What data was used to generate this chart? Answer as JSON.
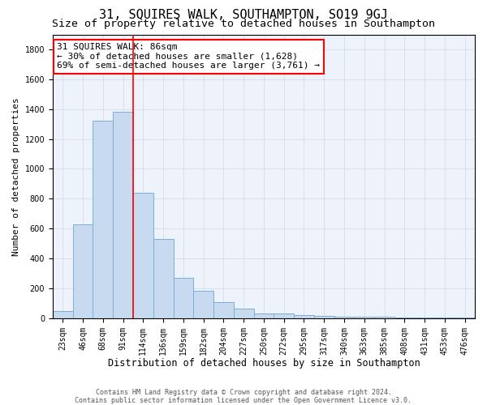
{
  "title": "31, SQUIRES WALK, SOUTHAMPTON, SO19 9GJ",
  "subtitle": "Size of property relative to detached houses in Southampton",
  "xlabel": "Distribution of detached houses by size in Southampton",
  "ylabel": "Number of detached properties",
  "footer_line1": "Contains HM Land Registry data © Crown copyright and database right 2024.",
  "footer_line2": "Contains public sector information licensed under the Open Government Licence v3.0.",
  "annotation_title": "31 SQUIRES WALK: 86sqm",
  "annotation_line2": "← 30% of detached houses are smaller (1,628)",
  "annotation_line3": "69% of semi-detached houses are larger (3,761) →",
  "bar_heights": [
    50,
    630,
    1320,
    1380,
    840,
    530,
    270,
    185,
    105,
    65,
    30,
    30,
    20,
    15,
    10,
    10,
    10,
    5,
    5,
    5,
    5
  ],
  "categories": [
    "23sqm",
    "46sqm",
    "68sqm",
    "91sqm",
    "114sqm",
    "136sqm",
    "159sqm",
    "182sqm",
    "204sqm",
    "227sqm",
    "250sqm",
    "272sqm",
    "295sqm",
    "317sqm",
    "340sqm",
    "363sqm",
    "385sqm",
    "408sqm",
    "431sqm",
    "453sqm",
    "476sqm"
  ],
  "bar_color": "#c8daf0",
  "bar_edge_color": "#7aafd4",
  "vline_x": 3.5,
  "vline_color": "red",
  "ylim": [
    0,
    1900
  ],
  "yticks": [
    0,
    200,
    400,
    600,
    800,
    1000,
    1200,
    1400,
    1600,
    1800
  ],
  "grid_color": "#d0d8e8",
  "background_color": "#eef2fa",
  "title_fontsize": 11,
  "subtitle_fontsize": 9.5,
  "annotation_fontsize": 8,
  "ylabel_fontsize": 8,
  "xlabel_fontsize": 8.5,
  "tick_fontsize": 7,
  "footer_fontsize": 6
}
